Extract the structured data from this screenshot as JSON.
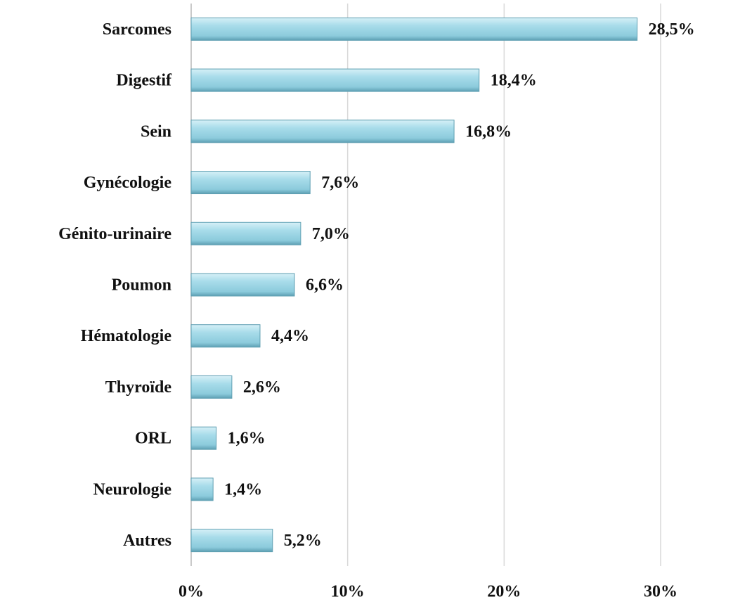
{
  "chart_data": {
    "type": "barh",
    "categories": [
      "Sarcomes",
      "Digestif",
      "Sein",
      "Gynécologie",
      "Génito-urinaire",
      "Poumon",
      "Hématologie",
      "Thyroïde",
      "ORL",
      "Neurologie",
      "Autres"
    ],
    "values": [
      28.5,
      18.4,
      16.8,
      7.6,
      7.0,
      6.6,
      4.4,
      2.6,
      1.6,
      1.4,
      5.2
    ],
    "value_labels": [
      "28,5%",
      "18,4%",
      "16,8%",
      "7,6%",
      "7,0%",
      "6,6%",
      "4,4%",
      "2,6%",
      "1,6%",
      "1,4%",
      "5,2%"
    ],
    "color": "#9fd6e4",
    "xlim": [
      0,
      30
    ],
    "xticks": [
      {
        "value": 0,
        "label": "0%"
      },
      {
        "value": 10,
        "label": "10%"
      },
      {
        "value": 20,
        "label": "20%"
      },
      {
        "value": 30,
        "label": "30%"
      }
    ],
    "grid": true
  }
}
